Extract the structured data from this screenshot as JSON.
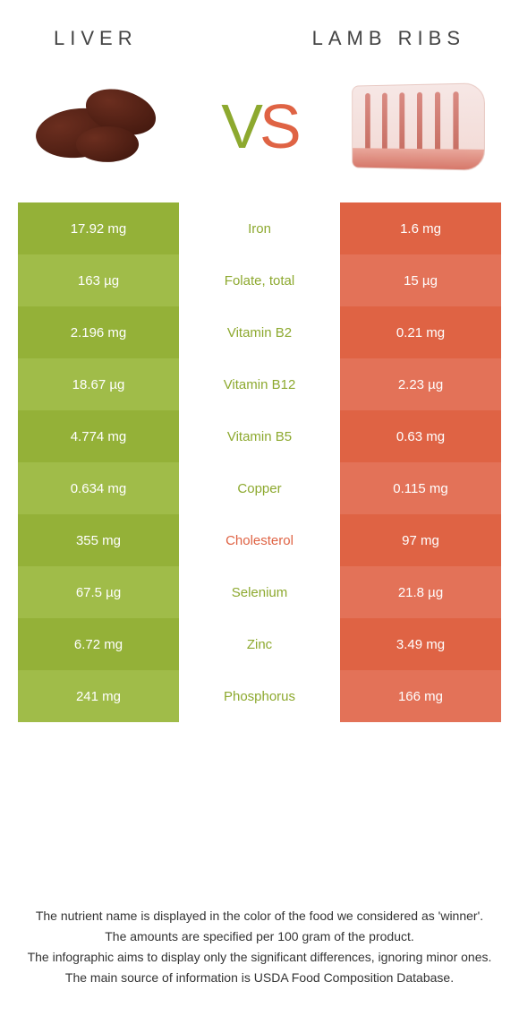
{
  "title_left": "LIVER",
  "title_right": "LAMB RIBS",
  "vs_v": "V",
  "vs_s": "S",
  "colors": {
    "left_odd": "#94B138",
    "left_even": "#A0BC49",
    "right_odd": "#DF6344",
    "right_even": "#E37258",
    "left_text": "#8DA92F",
    "right_text": "#DF6344",
    "bg": "#ffffff"
  },
  "rows": [
    {
      "left": "17.92 mg",
      "label": "Iron",
      "right": "1.6 mg",
      "winner": "left"
    },
    {
      "left": "163 µg",
      "label": "Folate, total",
      "right": "15 µg",
      "winner": "left"
    },
    {
      "left": "2.196 mg",
      "label": "Vitamin B2",
      "right": "0.21 mg",
      "winner": "left"
    },
    {
      "left": "18.67 µg",
      "label": "Vitamin B12",
      "right": "2.23 µg",
      "winner": "left"
    },
    {
      "left": "4.774 mg",
      "label": "Vitamin B5",
      "right": "0.63 mg",
      "winner": "left"
    },
    {
      "left": "0.634 mg",
      "label": "Copper",
      "right": "0.115 mg",
      "winner": "left"
    },
    {
      "left": "355 mg",
      "label": "Cholesterol",
      "right": "97 mg",
      "winner": "right"
    },
    {
      "left": "67.5 µg",
      "label": "Selenium",
      "right": "21.8 µg",
      "winner": "left"
    },
    {
      "left": "6.72 mg",
      "label": "Zinc",
      "right": "3.49 mg",
      "winner": "left"
    },
    {
      "left": "241 mg",
      "label": "Phosphorus",
      "right": "166 mg",
      "winner": "left"
    }
  ],
  "footer": [
    "The nutrient name is displayed in the color of the food we considered as 'winner'.",
    "The amounts are specified per 100 gram of the product.",
    "The infographic aims to display only the significant differences, ignoring minor ones.",
    "The main source of information is USDA Food Composition Database."
  ]
}
